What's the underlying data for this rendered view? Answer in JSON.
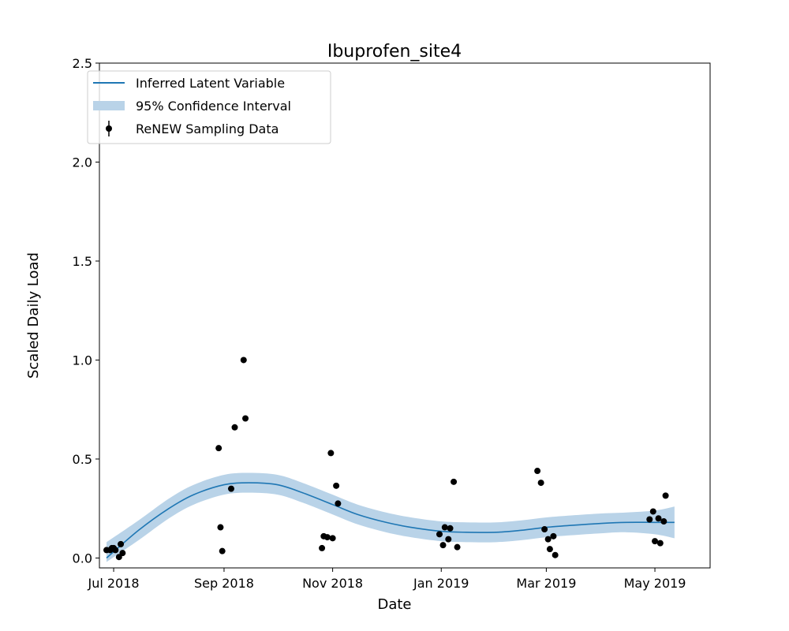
{
  "chart_data": {
    "type": "scatter",
    "title": "Ibuprofen_site4",
    "xlabel": "Date",
    "ylabel": "Scaled Daily Load",
    "xlim": [
      "2018-06-23",
      "2019-06-01"
    ],
    "ylim": [
      -0.05,
      2.5
    ],
    "x_ticks": [
      "2018-07-01",
      "2018-09-01",
      "2018-11-01",
      "2019-01-01",
      "2019-03-01",
      "2019-05-01"
    ],
    "x_tick_labels": [
      "Jul 2018",
      "Sep 2018",
      "Nov 2018",
      "Jan 2019",
      "Mar 2019",
      "May 2019"
    ],
    "y_ticks": [
      0.0,
      0.5,
      1.0,
      1.5,
      2.0,
      2.5
    ],
    "y_tick_labels": [
      "0.0",
      "0.5",
      "1.0",
      "1.5",
      "2.0",
      "2.5"
    ],
    "grid": false,
    "legend": {
      "location": "upper left",
      "entries": [
        "Inferred Latent Variable",
        "95% Confidence Interval",
        "ReNEW Sampling Data"
      ]
    },
    "colors": {
      "line": "#1f77b4",
      "band": "#b9d3e8",
      "points": "#000000"
    },
    "series": [
      {
        "name": "Inferred Latent Variable",
        "type": "line",
        "x": [
          "2018-06-27",
          "2018-07-15",
          "2018-08-01",
          "2018-08-15",
          "2018-09-01",
          "2018-09-15",
          "2018-10-01",
          "2018-10-15",
          "2018-11-01",
          "2018-11-15",
          "2018-12-01",
          "2018-12-15",
          "2019-01-01",
          "2019-01-15",
          "2019-02-01",
          "2019-02-15",
          "2019-03-01",
          "2019-03-15",
          "2019-04-01",
          "2019-04-15",
          "2019-05-01",
          "2019-05-12"
        ],
        "y": [
          0.0,
          0.14,
          0.25,
          0.32,
          0.37,
          0.38,
          0.37,
          0.33,
          0.27,
          0.22,
          0.18,
          0.155,
          0.135,
          0.13,
          0.13,
          0.14,
          0.155,
          0.165,
          0.175,
          0.18,
          0.18,
          0.18
        ]
      },
      {
        "name": "95% Confidence Interval",
        "type": "band",
        "x": [
          "2018-06-27",
          "2018-07-15",
          "2018-08-01",
          "2018-08-15",
          "2018-09-01",
          "2018-09-15",
          "2018-10-01",
          "2018-10-15",
          "2018-11-01",
          "2018-11-15",
          "2018-12-01",
          "2018-12-15",
          "2019-01-01",
          "2019-01-15",
          "2019-02-01",
          "2019-02-15",
          "2019-03-01",
          "2019-03-15",
          "2019-04-01",
          "2019-04-15",
          "2019-05-01",
          "2019-05-12"
        ],
        "lower": [
          -0.02,
          0.09,
          0.2,
          0.27,
          0.32,
          0.33,
          0.32,
          0.28,
          0.22,
          0.17,
          0.13,
          0.105,
          0.085,
          0.08,
          0.08,
          0.09,
          0.105,
          0.115,
          0.125,
          0.13,
          0.12,
          0.1
        ],
        "upper": [
          0.08,
          0.19,
          0.3,
          0.37,
          0.42,
          0.43,
          0.42,
          0.38,
          0.32,
          0.27,
          0.23,
          0.205,
          0.185,
          0.18,
          0.18,
          0.19,
          0.205,
          0.215,
          0.225,
          0.23,
          0.24,
          0.26
        ]
      },
      {
        "name": "ReNEW Sampling Data",
        "type": "scatter",
        "x": [
          "2018-06-27",
          "2018-06-29",
          "2018-06-30",
          "2018-07-01",
          "2018-07-02",
          "2018-07-04",
          "2018-07-05",
          "2018-07-06",
          "2018-08-29",
          "2018-08-30",
          "2018-08-31",
          "2018-09-05",
          "2018-09-07",
          "2018-09-12",
          "2018-09-13",
          "2018-10-26",
          "2018-10-27",
          "2018-10-29",
          "2018-10-31",
          "2018-11-01",
          "2018-11-03",
          "2018-11-04",
          "2018-12-31",
          "2019-01-02",
          "2019-01-03",
          "2019-01-05",
          "2019-01-06",
          "2019-01-08",
          "2019-01-10",
          "2019-02-24",
          "2019-02-26",
          "2019-02-28",
          "2019-03-02",
          "2019-03-03",
          "2019-03-05",
          "2019-03-06",
          "2019-04-28",
          "2019-04-30",
          "2019-05-01",
          "2019-05-03",
          "2019-05-04",
          "2019-05-06",
          "2019-05-07"
        ],
        "y": [
          0.04,
          0.04,
          0.05,
          0.05,
          0.04,
          0.005,
          0.07,
          0.025,
          0.555,
          0.155,
          0.035,
          0.35,
          0.66,
          1.0,
          0.705,
          0.05,
          0.11,
          0.105,
          0.53,
          0.1,
          0.365,
          0.275,
          0.12,
          0.065,
          0.155,
          0.095,
          0.15,
          0.385,
          0.055,
          0.44,
          0.38,
          0.145,
          0.095,
          0.045,
          0.11,
          0.015,
          0.195,
          0.235,
          0.085,
          0.2,
          0.075,
          0.185,
          0.315
        ]
      }
    ]
  }
}
